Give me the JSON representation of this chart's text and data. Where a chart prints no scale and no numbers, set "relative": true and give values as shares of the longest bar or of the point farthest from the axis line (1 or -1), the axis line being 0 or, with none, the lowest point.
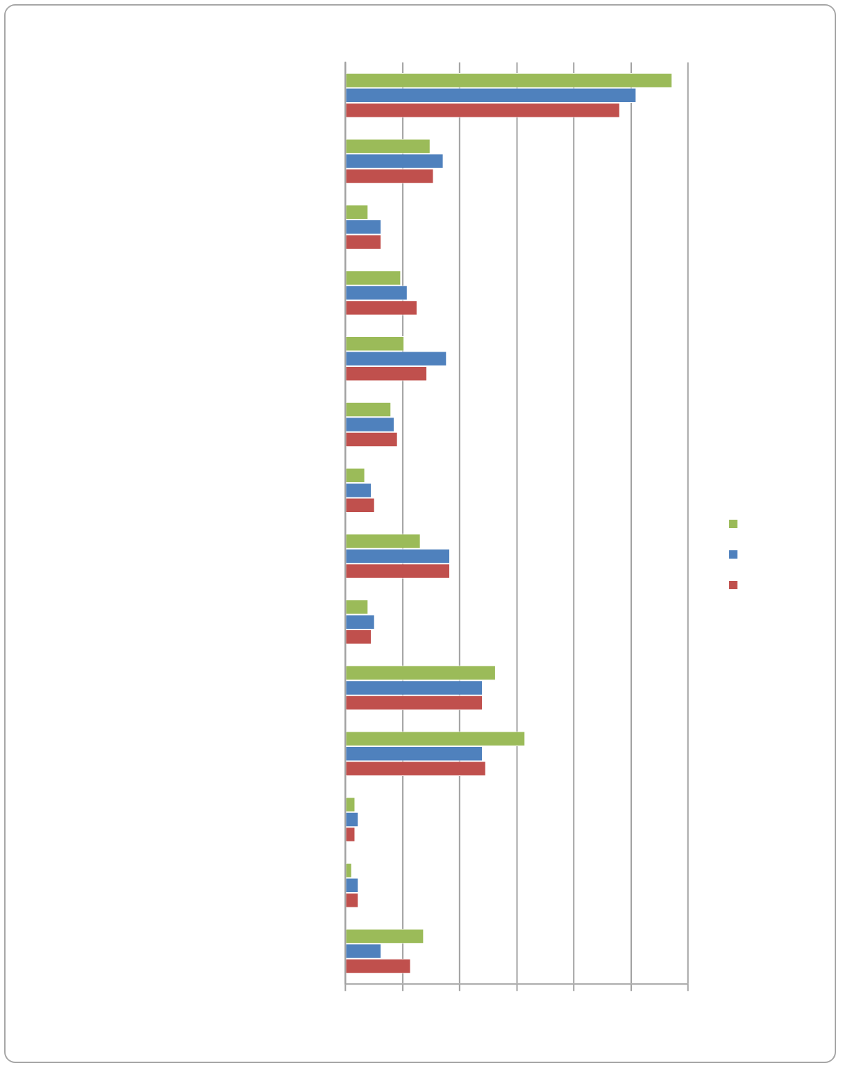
{
  "chart_data": {
    "type": "bar",
    "orientation": "horizontal",
    "relative": true,
    "grid": "x",
    "categories": [
      null,
      null,
      null,
      null,
      null,
      null,
      null,
      null,
      null,
      null,
      null,
      null,
      null,
      null
    ],
    "series": [
      {
        "color": "#9bbb59",
        "values": [
          1.0,
          0.26,
          0.07,
          0.17,
          0.18,
          0.14,
          0.06,
          0.23,
          0.07,
          0.46,
          0.55,
          0.03,
          0.02,
          0.24
        ]
      },
      {
        "color": "#4f81bd",
        "values": [
          0.89,
          0.3,
          0.11,
          0.19,
          0.31,
          0.15,
          0.08,
          0.32,
          0.09,
          0.42,
          0.42,
          0.04,
          0.04,
          0.11
        ]
      },
      {
        "color": "#c0504d",
        "values": [
          0.84,
          0.27,
          0.11,
          0.22,
          0.25,
          0.16,
          0.09,
          0.32,
          0.08,
          0.42,
          0.43,
          0.03,
          0.04,
          0.2
        ]
      }
    ]
  }
}
